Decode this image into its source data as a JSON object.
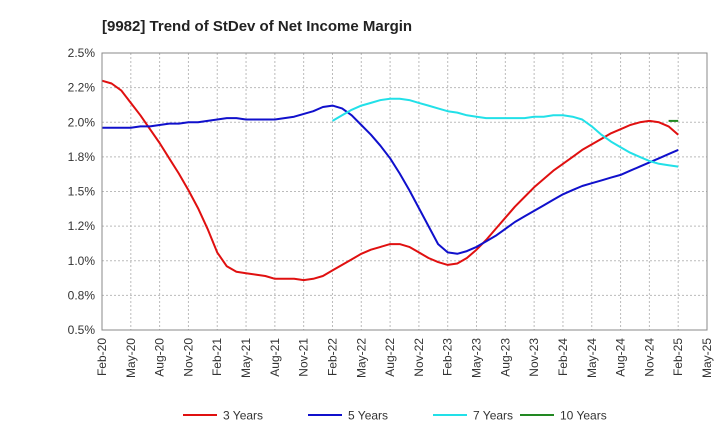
{
  "chart_data": {
    "type": "line",
    "title": "[9982]  Trend of StDev of Net Income Margin",
    "xlabel": "",
    "ylabel": "",
    "ylim": [
      0.5,
      2.5
    ],
    "y_ticks": [
      "0.5%",
      "0.8%",
      "1.0%",
      "1.2%",
      "1.5%",
      "1.8%",
      "2.0%",
      "2.2%",
      "2.5%"
    ],
    "x_ticks": [
      "Feb-20",
      "May-20",
      "Aug-20",
      "Nov-20",
      "Feb-21",
      "May-21",
      "Aug-21",
      "Nov-21",
      "Feb-22",
      "May-22",
      "Aug-22",
      "Nov-22",
      "Feb-23",
      "May-23",
      "Aug-23",
      "Nov-23",
      "Feb-24",
      "May-24",
      "Aug-24",
      "Nov-24",
      "Feb-25",
      "May-25"
    ],
    "grid": true,
    "legend": "bottom",
    "series": [
      {
        "name": "3 Years",
        "color": "#e01010",
        "points": [
          [
            "Feb-20",
            2.3
          ],
          [
            "Mar-20",
            2.28
          ],
          [
            "Apr-20",
            2.23
          ],
          [
            "May-20",
            2.14
          ],
          [
            "Jun-20",
            2.05
          ],
          [
            "Jul-20",
            1.95
          ],
          [
            "Aug-20",
            1.85
          ],
          [
            "Sep-20",
            1.74
          ],
          [
            "Oct-20",
            1.63
          ],
          [
            "Nov-20",
            1.51
          ],
          [
            "Dec-20",
            1.38
          ],
          [
            "Jan-21",
            1.23
          ],
          [
            "Feb-21",
            1.06
          ],
          [
            "Mar-21",
            0.96
          ],
          [
            "Apr-21",
            0.92
          ],
          [
            "May-21",
            0.91
          ],
          [
            "Jun-21",
            0.9
          ],
          [
            "Jul-21",
            0.89
          ],
          [
            "Aug-21",
            0.87
          ],
          [
            "Sep-21",
            0.87
          ],
          [
            "Oct-21",
            0.87
          ],
          [
            "Nov-21",
            0.86
          ],
          [
            "Dec-21",
            0.87
          ],
          [
            "Jan-22",
            0.89
          ],
          [
            "Feb-22",
            0.93
          ],
          [
            "Mar-22",
            0.97
          ],
          [
            "Apr-22",
            1.01
          ],
          [
            "May-22",
            1.05
          ],
          [
            "Jun-22",
            1.08
          ],
          [
            "Jul-22",
            1.1
          ],
          [
            "Aug-22",
            1.12
          ],
          [
            "Sep-22",
            1.12
          ],
          [
            "Oct-22",
            1.1
          ],
          [
            "Nov-22",
            1.06
          ],
          [
            "Dec-22",
            1.02
          ],
          [
            "Jan-23",
            0.99
          ],
          [
            "Feb-23",
            0.97
          ],
          [
            "Mar-23",
            0.98
          ],
          [
            "Apr-23",
            1.02
          ],
          [
            "May-23",
            1.08
          ],
          [
            "Jun-23",
            1.15
          ],
          [
            "Jul-23",
            1.23
          ],
          [
            "Aug-23",
            1.31
          ],
          [
            "Sep-23",
            1.39
          ],
          [
            "Oct-23",
            1.46
          ],
          [
            "Nov-23",
            1.53
          ],
          [
            "Dec-23",
            1.59
          ],
          [
            "Jan-24",
            1.65
          ],
          [
            "Feb-24",
            1.7
          ],
          [
            "Mar-24",
            1.75
          ],
          [
            "Apr-24",
            1.8
          ],
          [
            "May-24",
            1.84
          ],
          [
            "Jun-24",
            1.88
          ],
          [
            "Jul-24",
            1.92
          ],
          [
            "Aug-24",
            1.95
          ],
          [
            "Sep-24",
            1.98
          ],
          [
            "Oct-24",
            2.0
          ],
          [
            "Nov-24",
            2.01
          ],
          [
            "Dec-24",
            2.0
          ],
          [
            "Jan-25",
            1.97
          ],
          [
            "Feb-25",
            1.91
          ]
        ]
      },
      {
        "name": "5 Years",
        "color": "#1010cc",
        "points": [
          [
            "Feb-20",
            1.96
          ],
          [
            "Mar-20",
            1.96
          ],
          [
            "Apr-20",
            1.96
          ],
          [
            "May-20",
            1.96
          ],
          [
            "Jun-20",
            1.97
          ],
          [
            "Jul-20",
            1.97
          ],
          [
            "Aug-20",
            1.98
          ],
          [
            "Sep-20",
            1.99
          ],
          [
            "Oct-20",
            1.99
          ],
          [
            "Nov-20",
            2.0
          ],
          [
            "Dec-20",
            2.0
          ],
          [
            "Jan-21",
            2.01
          ],
          [
            "Feb-21",
            2.02
          ],
          [
            "Mar-21",
            2.03
          ],
          [
            "Apr-21",
            2.03
          ],
          [
            "May-21",
            2.02
          ],
          [
            "Jun-21",
            2.02
          ],
          [
            "Jul-21",
            2.02
          ],
          [
            "Aug-21",
            2.02
          ],
          [
            "Sep-21",
            2.03
          ],
          [
            "Oct-21",
            2.04
          ],
          [
            "Nov-21",
            2.06
          ],
          [
            "Dec-21",
            2.08
          ],
          [
            "Jan-22",
            2.11
          ],
          [
            "Feb-22",
            2.12
          ],
          [
            "Mar-22",
            2.1
          ],
          [
            "Apr-22",
            2.05
          ],
          [
            "May-22",
            1.98
          ],
          [
            "Jun-22",
            1.91
          ],
          [
            "Jul-22",
            1.83
          ],
          [
            "Aug-22",
            1.74
          ],
          [
            "Sep-22",
            1.63
          ],
          [
            "Oct-22",
            1.51
          ],
          [
            "Nov-22",
            1.38
          ],
          [
            "Dec-22",
            1.25
          ],
          [
            "Jan-23",
            1.12
          ],
          [
            "Feb-23",
            1.06
          ],
          [
            "Mar-23",
            1.05
          ],
          [
            "Apr-23",
            1.07
          ],
          [
            "May-23",
            1.1
          ],
          [
            "Jun-23",
            1.14
          ],
          [
            "Jul-23",
            1.18
          ],
          [
            "Aug-23",
            1.23
          ],
          [
            "Sep-23",
            1.28
          ],
          [
            "Oct-23",
            1.32
          ],
          [
            "Nov-23",
            1.36
          ],
          [
            "Dec-23",
            1.4
          ],
          [
            "Jan-24",
            1.44
          ],
          [
            "Feb-24",
            1.48
          ],
          [
            "Mar-24",
            1.51
          ],
          [
            "Apr-24",
            1.54
          ],
          [
            "May-24",
            1.56
          ],
          [
            "Jun-24",
            1.58
          ],
          [
            "Jul-24",
            1.6
          ],
          [
            "Aug-24",
            1.62
          ],
          [
            "Sep-24",
            1.65
          ],
          [
            "Oct-24",
            1.68
          ],
          [
            "Nov-24",
            1.71
          ],
          [
            "Dec-24",
            1.74
          ],
          [
            "Jan-25",
            1.77
          ],
          [
            "Feb-25",
            1.8
          ]
        ]
      },
      {
        "name": "7 Years",
        "color": "#22e0e8",
        "points": [
          [
            "Feb-22",
            2.01
          ],
          [
            "Mar-22",
            2.05
          ],
          [
            "Apr-22",
            2.09
          ],
          [
            "May-22",
            2.12
          ],
          [
            "Jun-22",
            2.14
          ],
          [
            "Jul-22",
            2.16
          ],
          [
            "Aug-22",
            2.17
          ],
          [
            "Sep-22",
            2.17
          ],
          [
            "Oct-22",
            2.16
          ],
          [
            "Nov-22",
            2.14
          ],
          [
            "Dec-22",
            2.12
          ],
          [
            "Jan-23",
            2.1
          ],
          [
            "Feb-23",
            2.08
          ],
          [
            "Mar-23",
            2.07
          ],
          [
            "Apr-23",
            2.05
          ],
          [
            "May-23",
            2.04
          ],
          [
            "Jun-23",
            2.03
          ],
          [
            "Jul-23",
            2.03
          ],
          [
            "Aug-23",
            2.03
          ],
          [
            "Sep-23",
            2.03
          ],
          [
            "Oct-23",
            2.03
          ],
          [
            "Nov-23",
            2.04
          ],
          [
            "Dec-23",
            2.04
          ],
          [
            "Jan-24",
            2.05
          ],
          [
            "Feb-24",
            2.05
          ],
          [
            "Mar-24",
            2.04
          ],
          [
            "Apr-24",
            2.02
          ],
          [
            "May-24",
            1.97
          ],
          [
            "Jun-24",
            1.91
          ],
          [
            "Jul-24",
            1.86
          ],
          [
            "Aug-24",
            1.82
          ],
          [
            "Sep-24",
            1.78
          ],
          [
            "Oct-24",
            1.75
          ],
          [
            "Nov-24",
            1.72
          ],
          [
            "Dec-24",
            1.7
          ],
          [
            "Jan-25",
            1.69
          ],
          [
            "Feb-25",
            1.68
          ]
        ]
      },
      {
        "name": "10 Years",
        "color": "#228822",
        "points": [
          [
            "Jan-25",
            2.01
          ],
          [
            "Feb-25",
            2.01
          ]
        ]
      }
    ]
  }
}
